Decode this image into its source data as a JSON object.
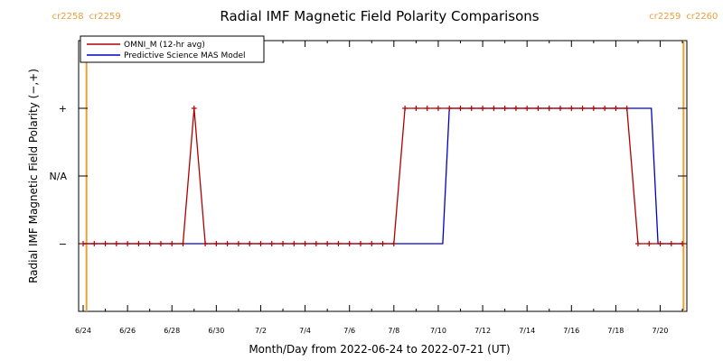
{
  "chart_data": {
    "type": "line",
    "title": "Radial IMF Magnetic Field Polarity Comparisons",
    "xlabel": "Month/Day from 2022-06-24 to 2022-07-21 (UT)",
    "ylabel": "Radial IMF Magnetic Field Polarity (−,+)",
    "x_tick_labels": [
      "6/24",
      "6/26",
      "6/28",
      "6/30",
      "7/2",
      "7/4",
      "7/6",
      "7/8",
      "7/10",
      "7/12",
      "7/14",
      "7/16",
      "7/18",
      "7/20"
    ],
    "x_tick_positions_days": [
      0,
      2,
      4,
      6,
      8,
      10,
      12,
      14,
      16,
      18,
      20,
      22,
      24,
      26
    ],
    "xlim_days": [
      0,
      27.2
    ],
    "y_categories": [
      "−",
      "N/A",
      "+"
    ],
    "y_values_map": {
      "−": -1,
      "N/A": 0,
      "+": 1
    },
    "ylim": [
      -2,
      2
    ],
    "carrington_markers": [
      {
        "day": 0.15,
        "left_label": "cr2258",
        "right_label": "cr2259"
      },
      {
        "day": 27.05,
        "left_label": "cr2259",
        "right_label": "cr2260"
      }
    ],
    "marker_color": "#f0a030",
    "legend": {
      "position": "top-left",
      "entries": [
        {
          "label": "OMNI_M (12-hr avg)",
          "color": "#b00000"
        },
        {
          "label": "Predictive Science MAS Model",
          "color": "#0000c8"
        }
      ]
    },
    "series": [
      {
        "name": "OMNI_M (12-hr avg)",
        "color": "#b00000",
        "markers": true,
        "x": [
          0.0,
          0.5,
          1.0,
          1.5,
          2.0,
          2.5,
          3.0,
          3.5,
          4.0,
          4.5,
          5.0,
          5.5,
          6.0,
          6.5,
          7.0,
          7.5,
          8.0,
          8.5,
          9.0,
          9.5,
          10.0,
          10.5,
          11.0,
          11.5,
          12.0,
          12.5,
          13.0,
          13.5,
          14.0,
          14.5,
          15.0,
          15.5,
          16.0,
          16.5,
          17.0,
          17.5,
          18.0,
          18.5,
          19.0,
          19.5,
          20.0,
          20.5,
          21.0,
          21.5,
          22.0,
          22.5,
          23.0,
          23.5,
          24.0,
          24.5,
          25.0,
          25.5,
          26.0,
          26.5,
          27.0
        ],
        "y": [
          -1,
          -1,
          -1,
          -1,
          -1,
          -1,
          -1,
          -1,
          -1,
          -1,
          1,
          -1,
          -1,
          -1,
          -1,
          -1,
          -1,
          -1,
          -1,
          -1,
          -1,
          -1,
          -1,
          -1,
          -1,
          -1,
          -1,
          -1,
          -1,
          1,
          1,
          1,
          1,
          1,
          1,
          1,
          1,
          1,
          1,
          1,
          1,
          1,
          1,
          1,
          1,
          1,
          1,
          1,
          1,
          1,
          -1,
          -1,
          -1,
          -1,
          -1
        ]
      },
      {
        "name": "Predictive Science MAS Model",
        "color": "#0000c8",
        "markers": false,
        "x": [
          0.0,
          16.2,
          16.5,
          25.6,
          25.9,
          27.0
        ],
        "y": [
          -1,
          -1,
          1,
          1,
          -1,
          -1
        ]
      }
    ]
  }
}
